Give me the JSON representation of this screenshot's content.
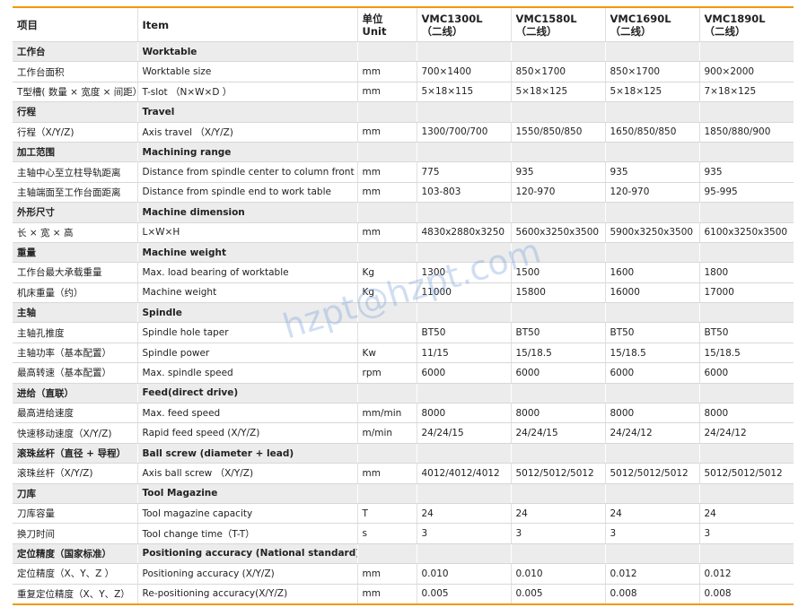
{
  "header": [
    "项目",
    "Item",
    [
      "单位",
      "Unit"
    ],
    [
      "VMC1300L",
      "（二线）"
    ],
    [
      "VMC1580L",
      "（二线）"
    ],
    [
      "VMC1690L",
      "（二线）"
    ],
    [
      "VMC1890L",
      "（二线）"
    ]
  ],
  "sections": [
    {
      "cn": "工作台",
      "en": "Worktable",
      "rows": [
        [
          "工作台面积",
          "Worktable size",
          "mm",
          "700×1400",
          "850×1700",
          "850×1700",
          "900×2000"
        ],
        [
          "T型槽( 数量 × 宽度 × 间距）",
          "T-slot （N×W×D ）",
          "mm",
          "5×18×115",
          "5×18×125",
          "5×18×125",
          "7×18×125"
        ]
      ]
    },
    {
      "cn": "行程",
      "en": "Travel",
      "rows": [
        [
          "行程（X/Y/Z)",
          "Axis travel （X/Y/Z)",
          "mm",
          "1300/700/700",
          "1550/850/850",
          "1650/850/850",
          "1850/880/900"
        ]
      ]
    },
    {
      "cn": "加工范围",
      "en": "Machining range",
      "rows": [
        [
          "主轴中心至立柱导轨距离",
          "Distance from spindle center to column front",
          "mm",
          "775",
          "935",
          "935",
          "935"
        ],
        [
          "主轴端面至工作台面距离",
          "Distance from spindle end to work table",
          "mm",
          "103-803",
          "120-970",
          "120-970",
          "95-995"
        ]
      ]
    },
    {
      "cn": "外形尺寸",
      "en": "Machine dimension",
      "rows": [
        [
          "长 × 宽 × 高",
          "L×W×H",
          "mm",
          "4830x2880x3250",
          "5600x3250x3500",
          "5900x3250x3500",
          "6100x3250x3500"
        ]
      ]
    },
    {
      "cn": "重量",
      "en": "Machine weight",
      "rows": [
        [
          "工作台最大承载重量",
          "Max. load bearing of worktable",
          "Kg",
          "1300",
          "1500",
          "1600",
          "1800"
        ],
        [
          "机床重量（约）",
          "Machine weight",
          "Kg",
          "11000",
          "15800",
          "16000",
          "17000"
        ]
      ]
    },
    {
      "cn": "主轴",
      "en": "Spindle",
      "rows": [
        [
          "主轴孔推度",
          "Spindle hole taper",
          null,
          "BT50",
          "BT50",
          "BT50",
          "BT50"
        ],
        [
          "主轴功率（基本配置）",
          "Spindle power",
          "Kw",
          "11/15",
          "15/18.5",
          "15/18.5",
          "15/18.5"
        ],
        [
          "最高转速（基本配置）",
          "Max. spindle speed",
          "rpm",
          "6000",
          "6000",
          "6000",
          "6000"
        ]
      ]
    },
    {
      "cn": "进给（直联）",
      "en": "Feed(direct drive)",
      "rows": [
        [
          "最高进给速度",
          "Max. feed speed",
          "mm/min",
          "8000",
          "8000",
          "8000",
          "8000"
        ],
        [
          "快速移动速度（X/Y/Z)",
          "Rapid feed speed (X/Y/Z)",
          "m/min",
          "24/24/15",
          "24/24/15",
          "24/24/12",
          "24/24/12"
        ]
      ]
    },
    {
      "cn": "滚珠丝杆（直径 + 导程）",
      "en": "Ball screw (diameter + lead)",
      "rows": [
        [
          "滚珠丝杆（X/Y/Z)",
          "Axis ball screw （X/Y/Z)",
          "mm",
          "4012/4012/4012",
          "5012/5012/5012",
          "5012/5012/5012",
          "5012/5012/5012"
        ]
      ]
    },
    {
      "cn": "刀库",
      "en": "Tool Magazine",
      "rows": [
        [
          "刀库容量",
          "Tool magazine capacity",
          "T",
          "24",
          "24",
          "24",
          "24"
        ],
        [
          "换刀时间",
          "Tool change time（T-T）",
          "s",
          "3",
          "3",
          "3",
          "3"
        ]
      ]
    },
    {
      "cn": "定位精度（国家标准）",
      "en": "Positioning accuracy (National standard)",
      "rows": [
        [
          "定位精度（X、Y、Z ）",
          "Positioning accuracy (X/Y/Z)",
          "mm",
          "0.010",
          "0.010",
          "0.012",
          "0.012"
        ],
        [
          "重复定位精度（X、Y、Z）",
          "Re-positioning accuracy(X/Y/Z)",
          "mm",
          "0.005",
          "0.005",
          "0.008",
          "0.008"
        ]
      ]
    }
  ],
  "watermark": "hzpt@hzpt.com"
}
